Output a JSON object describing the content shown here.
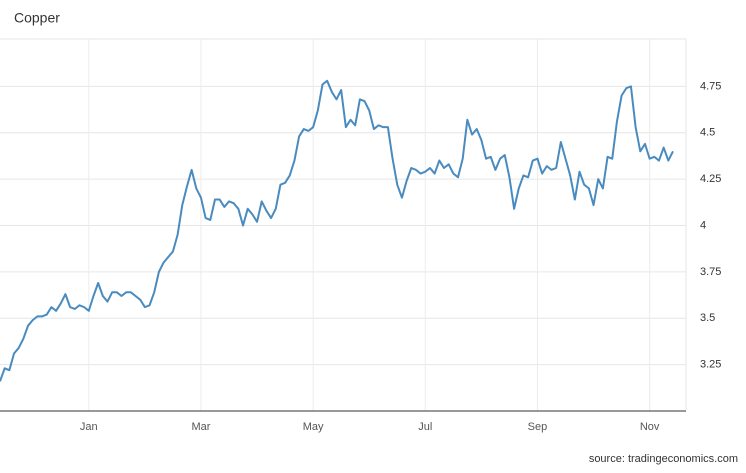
{
  "chart_data": {
    "type": "line",
    "title": "Copper",
    "source": "source: tradingeconomics.com",
    "color": "#4a8bbf",
    "grid": true,
    "ylim": [
      3,
      5
    ],
    "yticks": [
      3.25,
      3.5,
      3.75,
      4,
      4.25,
      4.5,
      4.75
    ],
    "categories": [
      null,
      null,
      null,
      null,
      null,
      null,
      null,
      null,
      null,
      null,
      null,
      null,
      null,
      null,
      null,
      null,
      null,
      null,
      null,
      "Jan",
      null,
      null,
      null,
      null,
      null,
      null,
      null,
      null,
      null,
      null,
      null,
      null,
      null,
      null,
      null,
      null,
      null,
      null,
      null,
      null,
      null,
      null,
      null,
      "Mar",
      null,
      null,
      null,
      null,
      null,
      null,
      null,
      null,
      null,
      null,
      null,
      null,
      null,
      null,
      null,
      null,
      null,
      null,
      null,
      null,
      null,
      null,
      null,
      "May",
      null,
      null,
      null,
      null,
      null,
      null,
      null,
      null,
      null,
      null,
      null,
      null,
      null,
      null,
      null,
      null,
      null,
      null,
      null,
      null,
      null,
      null,
      null,
      "Jul",
      null,
      null,
      null,
      null,
      null,
      null,
      null,
      null,
      null,
      null,
      null,
      null,
      null,
      null,
      null,
      null,
      null,
      null,
      null,
      null,
      null,
      null,
      null,
      "Sep",
      null,
      null,
      null,
      null,
      null,
      null,
      null,
      null,
      null,
      null,
      null,
      null,
      null,
      null,
      null,
      null,
      null,
      null,
      null,
      null,
      null,
      null,
      null,
      "Nov",
      null,
      null,
      null,
      null,
      null
    ],
    "values": [
      3.16,
      3.23,
      3.22,
      3.31,
      3.34,
      3.39,
      3.46,
      3.49,
      3.51,
      3.51,
      3.52,
      3.56,
      3.54,
      3.58,
      3.63,
      3.56,
      3.55,
      3.57,
      3.56,
      3.54,
      3.62,
      3.69,
      3.62,
      3.59,
      3.64,
      3.64,
      3.62,
      3.64,
      3.64,
      3.62,
      3.6,
      3.56,
      3.57,
      3.64,
      3.75,
      3.8,
      3.83,
      3.86,
      3.95,
      4.11,
      4.21,
      4.3,
      4.2,
      4.15,
      4.04,
      4.03,
      4.14,
      4.14,
      4.1,
      4.13,
      4.12,
      4.09,
      4.0,
      4.09,
      4.06,
      4.02,
      4.13,
      4.08,
      4.04,
      4.09,
      4.22,
      4.23,
      4.27,
      4.35,
      4.48,
      4.52,
      4.51,
      4.53,
      4.62,
      4.76,
      4.78,
      4.72,
      4.68,
      4.73,
      4.53,
      4.57,
      4.54,
      4.68,
      4.67,
      4.62,
      4.52,
      4.54,
      4.53,
      4.53,
      4.36,
      4.22,
      4.15,
      4.24,
      4.31,
      4.3,
      4.28,
      4.29,
      4.31,
      4.28,
      4.35,
      4.31,
      4.33,
      4.28,
      4.26,
      4.36,
      4.57,
      4.49,
      4.52,
      4.46,
      4.36,
      4.37,
      4.3,
      4.36,
      4.38,
      4.26,
      4.09,
      4.2,
      4.27,
      4.26,
      4.35,
      4.36,
      4.28,
      4.32,
      4.3,
      4.31,
      4.45,
      4.36,
      4.27,
      4.14,
      4.29,
      4.22,
      4.2,
      4.11,
      4.25,
      4.2,
      4.37,
      4.36,
      4.56,
      4.7,
      4.74,
      4.75,
      4.53,
      4.4,
      4.44,
      4.36,
      4.37,
      4.35,
      4.42,
      4.35,
      4.4
    ]
  }
}
